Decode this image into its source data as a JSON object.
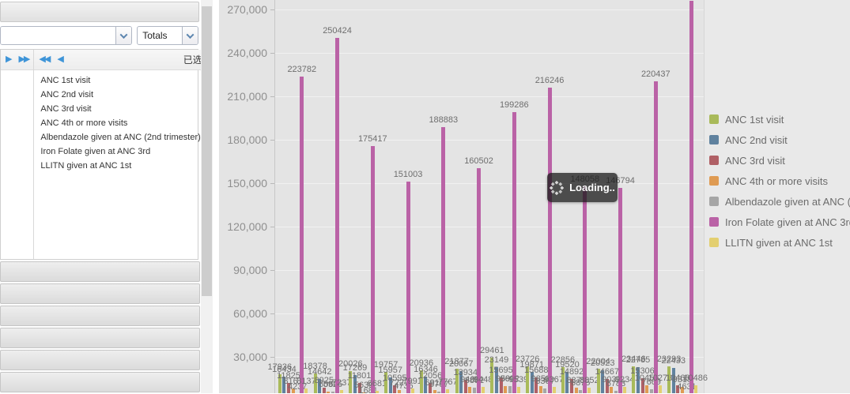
{
  "left_panel": {
    "filter_combo": {
      "value": "",
      "placeholder": ""
    },
    "totals_combo": {
      "value": "Totals"
    },
    "selected_panel": {
      "title": "已选"
    },
    "selected_items": [
      "ANC 1st visit",
      "ANC 2nd visit",
      "ANC 3rd visit",
      "ANC 4th or more visits",
      "Albendazole given at ANC (2nd trimester)",
      "Iron Folate given at ANC 3rd",
      "LLITN given at ANC 1st"
    ],
    "accordion_section_count": 6
  },
  "loading": {
    "label": "Loading.."
  },
  "chart_data": {
    "type": "bar",
    "title": "",
    "categories": [
      "",
      "",
      "",
      "",
      "",
      "",
      "",
      "",
      "",
      "",
      "",
      ""
    ],
    "series": [
      {
        "name": "ANC 1st visit",
        "color": "#a9ba5a",
        "values": [
          17936,
          18378,
          20026,
          19757,
          20936,
          21877,
          29461,
          23726,
          22856,
          22004,
          23446,
          23293
        ]
      },
      {
        "name": "ANC 2nd visit",
        "color": "#60829f",
        "values": [
          16434,
          14642,
          17269,
          15957,
          16346,
          20067,
          23149,
          19871,
          19520,
          20523,
          22785,
          22433
        ]
      },
      {
        "name": "ANC 3rd visit",
        "color": "#b06066",
        "values": [
          11825,
          8925,
          11801,
          10595,
          12056,
          13934,
          15695,
          15688,
          14892,
          14667,
          15306,
          10466
        ]
      },
      {
        "name": "ANC 4th or more visits",
        "color": "#df9b53",
        "values": [
          8167,
          6060,
          5639,
          7227,
          6915,
          9468,
          9590,
          9859,
          8875,
          9039,
          10456,
          9315
        ]
      },
      {
        "name": "Albendazole given at ANC (2nd trimester)",
        "color": "#a6a6a6",
        "values": [
          4237,
          5925,
          1681,
          4736,
          5767,
          8892,
          9692,
          8367,
          6875,
          6783,
          7669,
          4631
        ]
      },
      {
        "name": "Iron Folate given at ANC 3rd",
        "color": "#ba62a6",
        "values": [
          223782,
          250424,
          175417,
          151003,
          188883,
          160502,
          199286,
          216246,
          148058,
          146794,
          220437,
          276096
        ]
      },
      {
        "name": "LLITN given at ANC 1st",
        "color": "#e3cf70",
        "values": [
          8137,
          7237,
          6681,
          7991,
          7767,
          9448,
          9539,
          9367,
          8852,
          9234,
          10278,
          10486
        ]
      }
    ],
    "yticks": [
      30000,
      60000,
      90000,
      120000,
      150000,
      180000,
      210000,
      240000,
      270000
    ],
    "ylim": [
      0,
      285000
    ],
    "grid": true,
    "legend_position": "right",
    "value_labels": true
  }
}
